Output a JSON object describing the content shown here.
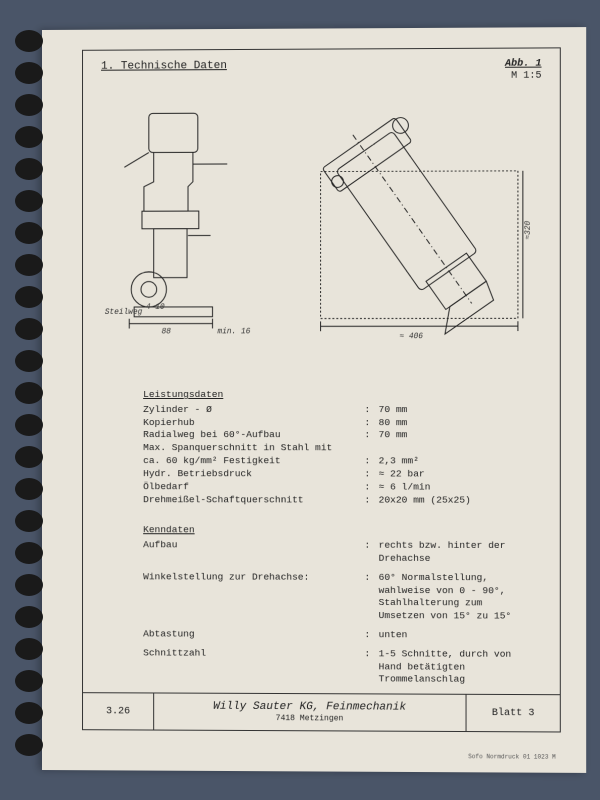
{
  "header": {
    "section": "1. Technische Daten",
    "fig": "Abb. 1",
    "scale": "M 1:5"
  },
  "dims": {
    "steilweg": "Steilweg",
    "angle": "4-10",
    "d88": "88",
    "min16": "min. 16",
    "h320": "≈320",
    "w406": "≈ 406"
  },
  "leistung": {
    "title": "Leistungsdaten",
    "rows": [
      {
        "l": "Zylinder - Ø",
        "v": "70 mm"
      },
      {
        "l": "Kopierhub",
        "v": "80 mm"
      },
      {
        "l": "Radialweg bei 60°-Aufbau",
        "v": "70 mm"
      },
      {
        "l": "Max. Spanquerschnitt in Stahl mit",
        "v": ""
      },
      {
        "l": "ca. 60 kg/mm² Festigkeit",
        "v": "2,3 mm²"
      },
      {
        "l": "Hydr. Betriebsdruck",
        "v": "≈  22 bar"
      },
      {
        "l": "Ölbedarf",
        "v": "≈   6 l/min"
      },
      {
        "l": "Drehmeißel-Schaftquerschnitt",
        "v": "20x20 mm (25x25)"
      }
    ]
  },
  "kenn": {
    "title": "Kenndaten",
    "rows": [
      {
        "l": "Aufbau",
        "v": "rechts bzw. hinter der Drehachse"
      },
      {
        "l": "Winkelstellung zur Drehachse:",
        "v": "60° Normalstellung, wahlweise von 0 - 90°, Stahlhalterung zum Umsetzen von 15° zu 15°"
      },
      {
        "l": "Abtastung",
        "v": "unten"
      },
      {
        "l": "Schnittzahl",
        "v": "1-5 Schnitte, durch von Hand betätigten Trommelanschlag"
      }
    ]
  },
  "footer": {
    "num": "3.26",
    "company": "Willy Sauter KG, Feinmechanik",
    "city": "7418 Metzingen",
    "blatt": "Blatt 3"
  },
  "tiny": "Sofo Normdruck  01 1023 M"
}
